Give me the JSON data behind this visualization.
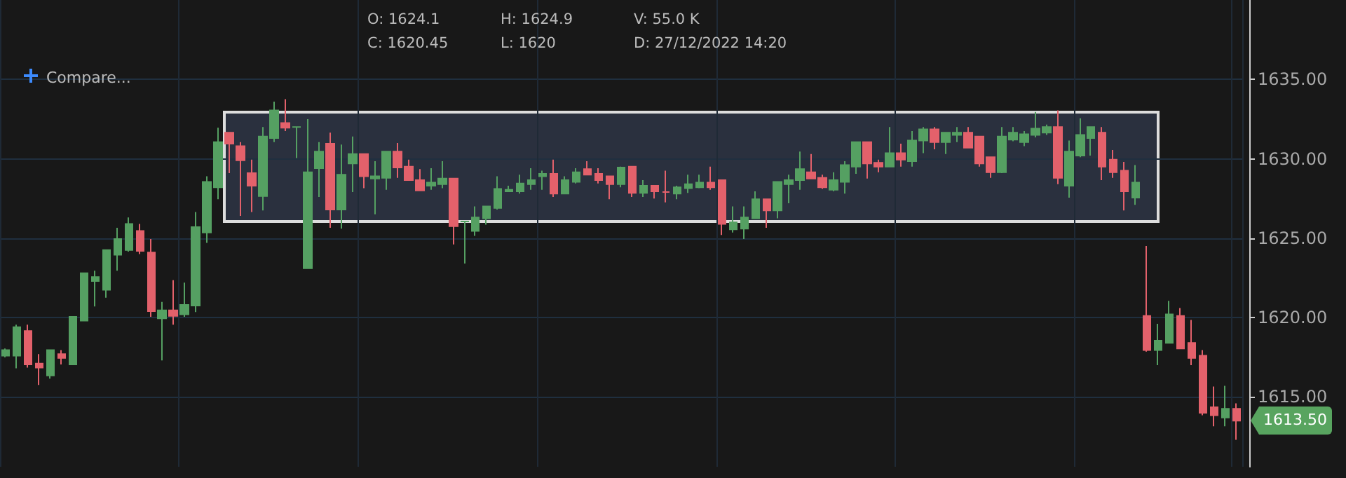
{
  "chart_data": {
    "type": "candlestick",
    "annotations": [
      "O: 1624.1",
      "C: 1620.45",
      "H: 1624.9",
      "L: 1620",
      "V: 55.0 K",
      "D: 27/12/2022 14:20",
      "Compare...",
      "1613.50"
    ],
    "categories": [
      null,
      null,
      null,
      null,
      null,
      null,
      null,
      null,
      null,
      null,
      null,
      null,
      null,
      null,
      null,
      null,
      null,
      null,
      null,
      null,
      null,
      null,
      null,
      null,
      null,
      null,
      null,
      null,
      null,
      null,
      null,
      null,
      null,
      null,
      null,
      null,
      null,
      null,
      null,
      null,
      null,
      null,
      null,
      null,
      null,
      null,
      null,
      null,
      null,
      null,
      null,
      null,
      null,
      null,
      null,
      null,
      null,
      null,
      null,
      null,
      null,
      null,
      null,
      null,
      null,
      null,
      null,
      null,
      null,
      null,
      null,
      null,
      null,
      null,
      null,
      null,
      null,
      null,
      null,
      null,
      null,
      null,
      null,
      null,
      null,
      null,
      null,
      null,
      null,
      null,
      null,
      null,
      null,
      null,
      null,
      null,
      null,
      null,
      null,
      null,
      null,
      null,
      null,
      null,
      null,
      null,
      null,
      null,
      null,
      null,
      null
    ],
    "ohlc": [
      [
        1617.6,
        1618.05,
        1617.5,
        1617.95
      ],
      [
        1617.6,
        1619.55,
        1616.8,
        1619.4
      ],
      [
        1619.15,
        1619.55,
        1616.85,
        1617.05
      ],
      [
        1617.1,
        1617.7,
        1615.75,
        1616.85
      ],
      [
        1616.35,
        1617.95,
        1616.15,
        1617.95
      ],
      [
        1617.7,
        1617.95,
        1617.05,
        1617.45
      ],
      [
        1617.05,
        1620.05,
        1617.05,
        1620.05
      ],
      [
        1619.8,
        1622.8,
        1619.8,
        1622.8
      ],
      [
        1622.3,
        1622.95,
        1620.7,
        1622.55
      ],
      [
        1621.75,
        1624.25,
        1621.25,
        1624.25
      ],
      [
        1623.95,
        1625.65,
        1622.95,
        1624.95
      ],
      [
        1624.25,
        1626.3,
        1624.15,
        1625.9
      ],
      [
        1625.45,
        1625.9,
        1624.0,
        1624.2
      ],
      [
        1624.1,
        1624.95,
        1620.05,
        1620.4
      ],
      [
        1619.95,
        1620.98,
        1617.3,
        1620.45
      ],
      [
        1620.45,
        1622.35,
        1619.55,
        1620.1
      ],
      [
        1620.2,
        1622.2,
        1620.05,
        1620.8
      ],
      [
        1620.75,
        1626.65,
        1620.35,
        1625.7
      ],
      [
        1625.35,
        1628.9,
        1624.7,
        1628.55
      ],
      [
        1628.2,
        1631.95,
        1627.45,
        1631.05
      ],
      [
        1631.65,
        1631.65,
        1629.1,
        1630.95
      ],
      [
        1630.8,
        1631.05,
        1626.4,
        1629.9
      ],
      [
        1629.1,
        1629.95,
        1626.65,
        1628.3
      ],
      [
        1627.65,
        1632.0,
        1626.75,
        1631.4
      ],
      [
        1631.3,
        1633.6,
        1631.05,
        1633.05
      ],
      [
        1632.25,
        1633.75,
        1631.75,
        1631.95
      ],
      [
        1632.0,
        1632.0,
        1630.05,
        1632.0
      ],
      [
        1623.1,
        1632.5,
        1623.1,
        1629.15
      ],
      [
        1629.4,
        1631.05,
        1627.6,
        1630.45
      ],
      [
        1630.95,
        1631.65,
        1625.65,
        1626.8
      ],
      [
        1626.8,
        1630.9,
        1625.6,
        1629.0
      ],
      [
        1629.7,
        1631.4,
        1627.9,
        1630.3
      ],
      [
        1630.3,
        1630.3,
        1628.15,
        1628.9
      ],
      [
        1628.75,
        1629.85,
        1626.5,
        1628.9
      ],
      [
        1628.8,
        1630.45,
        1628.05,
        1630.45
      ],
      [
        1630.45,
        1631.0,
        1628.8,
        1629.45
      ],
      [
        1629.5,
        1629.95,
        1628.65,
        1628.65
      ],
      [
        1628.65,
        1629.35,
        1628.0,
        1628.0
      ],
      [
        1628.3,
        1629.4,
        1628.05,
        1628.5
      ],
      [
        1628.4,
        1629.85,
        1628.15,
        1628.75
      ],
      [
        1628.75,
        1628.75,
        1624.6,
        1625.75
      ],
      [
        1626.05,
        1626.05,
        1623.4,
        1626.05
      ],
      [
        1625.45,
        1627.0,
        1625.15,
        1626.3
      ],
      [
        1626.25,
        1627.0,
        1625.85,
        1627.0
      ],
      [
        1626.9,
        1628.9,
        1626.8,
        1628.1
      ],
      [
        1627.95,
        1628.3,
        1627.95,
        1628.05
      ],
      [
        1627.95,
        1629.0,
        1627.8,
        1628.45
      ],
      [
        1628.4,
        1629.4,
        1628.05,
        1628.65
      ],
      [
        1628.9,
        1629.25,
        1628.05,
        1629.05
      ],
      [
        1629.05,
        1629.95,
        1627.6,
        1627.8
      ],
      [
        1627.8,
        1628.9,
        1627.8,
        1628.65
      ],
      [
        1628.55,
        1629.4,
        1628.45,
        1629.15
      ],
      [
        1629.35,
        1629.85,
        1629.0,
        1629.0
      ],
      [
        1629.05,
        1629.4,
        1628.45,
        1628.65
      ],
      [
        1628.9,
        1628.9,
        1627.45,
        1628.4
      ],
      [
        1628.4,
        1629.5,
        1628.2,
        1629.45
      ],
      [
        1629.5,
        1629.5,
        1627.6,
        1627.85
      ],
      [
        1627.85,
        1628.65,
        1627.6,
        1628.3
      ],
      [
        1628.3,
        1628.3,
        1627.5,
        1627.95
      ],
      [
        1627.9,
        1629.25,
        1627.25,
        1627.9
      ],
      [
        1627.8,
        1628.3,
        1627.45,
        1628.2
      ],
      [
        1628.15,
        1629.0,
        1627.85,
        1628.4
      ],
      [
        1628.2,
        1629.0,
        1628.15,
        1628.5
      ],
      [
        1628.5,
        1629.5,
        1628.05,
        1628.2
      ],
      [
        1628.65,
        1628.65,
        1625.2,
        1625.9
      ],
      [
        1625.55,
        1627.0,
        1625.35,
        1626.0
      ],
      [
        1625.6,
        1627.0,
        1624.95,
        1626.3
      ],
      [
        1626.25,
        1627.95,
        1626.25,
        1627.45
      ],
      [
        1627.45,
        1627.45,
        1625.65,
        1626.75
      ],
      [
        1626.75,
        1628.55,
        1626.25,
        1628.55
      ],
      [
        1628.4,
        1629.0,
        1627.2,
        1628.65
      ],
      [
        1628.65,
        1630.45,
        1628.05,
        1629.35
      ],
      [
        1629.15,
        1630.3,
        1628.75,
        1628.75
      ],
      [
        1628.8,
        1629.0,
        1628.1,
        1628.2
      ],
      [
        1628.05,
        1629.15,
        1627.95,
        1628.65
      ],
      [
        1628.55,
        1629.85,
        1627.8,
        1629.6
      ],
      [
        1629.5,
        1631.05,
        1629.05,
        1631.05
      ],
      [
        1631.05,
        1631.05,
        1628.75,
        1629.7
      ],
      [
        1629.75,
        1629.95,
        1629.15,
        1629.5
      ],
      [
        1629.5,
        1632.0,
        1629.5,
        1630.35
      ],
      [
        1630.35,
        1630.95,
        1629.5,
        1629.95
      ],
      [
        1629.85,
        1631.75,
        1629.5,
        1631.15
      ],
      [
        1631.15,
        1632.0,
        1630.35,
        1631.85
      ],
      [
        1631.85,
        1632.0,
        1630.6,
        1631.05
      ],
      [
        1631.05,
        1631.65,
        1630.3,
        1631.65
      ],
      [
        1631.5,
        1632.0,
        1631.05,
        1631.65
      ],
      [
        1631.65,
        1632.0,
        1630.7,
        1630.7
      ],
      [
        1631.4,
        1631.4,
        1629.5,
        1629.7
      ],
      [
        1630.1,
        1630.1,
        1628.8,
        1629.15
      ],
      [
        1629.15,
        1632.0,
        1629.1,
        1631.4
      ],
      [
        1631.2,
        1632.0,
        1631.1,
        1631.65
      ],
      [
        1631.05,
        1631.75,
        1630.8,
        1631.55
      ],
      [
        1631.5,
        1632.95,
        1631.35,
        1631.9
      ],
      [
        1631.65,
        1632.15,
        1631.5,
        1632.0
      ],
      [
        1632.0,
        1633.05,
        1628.4,
        1628.8
      ],
      [
        1628.3,
        1631.15,
        1627.55,
        1630.45
      ],
      [
        1630.2,
        1632.55,
        1630.1,
        1631.5
      ],
      [
        1631.3,
        1632.0,
        1630.2,
        1632.0
      ],
      [
        1631.65,
        1632.0,
        1628.65,
        1629.5
      ],
      [
        1629.95,
        1630.55,
        1628.8,
        1629.15
      ],
      [
        1629.25,
        1629.8,
        1626.75,
        1627.95
      ],
      [
        1627.55,
        1629.6,
        1627.1,
        1628.5
      ],
      [
        1620.1,
        1624.5,
        1617.85,
        1617.95
      ],
      [
        1617.95,
        1619.6,
        1617.0,
        1618.55
      ],
      [
        1618.4,
        1621.05,
        1618.4,
        1620.2
      ],
      [
        1620.1,
        1620.6,
        1618.05,
        1618.05
      ],
      [
        1618.4,
        1619.85,
        1617.0,
        1617.45
      ],
      [
        1617.6,
        1617.95,
        1613.85,
        1614.0
      ],
      [
        1614.35,
        1615.65,
        1613.15,
        1613.85
      ],
      [
        1613.7,
        1615.7,
        1613.15,
        1614.25
      ],
      [
        1614.25,
        1614.6,
        1612.3,
        1613.5
      ]
    ],
    "ylim": [
      1610.6,
      1640
    ],
    "yticks": [
      {
        "value": 1615,
        "label": "1615.00"
      },
      {
        "value": 1620,
        "label": "1620.00"
      },
      {
        "value": 1625,
        "label": "1625.00"
      },
      {
        "value": 1630,
        "label": "1630.00"
      },
      {
        "value": 1635,
        "label": "1635.00"
      }
    ],
    "grid": true
  }
}
